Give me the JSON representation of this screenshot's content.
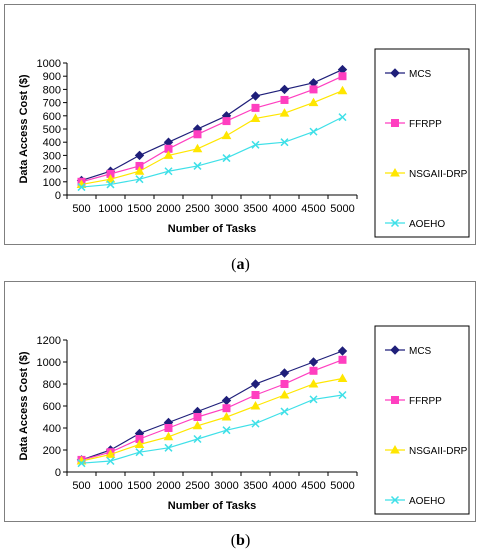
{
  "chart_data": [
    {
      "type": "line",
      "caption_label": "a",
      "xlabel": "Number of Tasks",
      "ylabel": "Data Access Cost ($)",
      "x": [
        500,
        1000,
        1500,
        2000,
        2500,
        3000,
        3500,
        4000,
        4500,
        5000
      ],
      "ylim": [
        0,
        1000
      ],
      "ytick_step": 100,
      "grid": false,
      "legend_position": "right",
      "series": [
        {
          "name": "MCS",
          "color": "#1f1f7a",
          "marker": "diamond",
          "values": [
            110,
            180,
            300,
            400,
            500,
            600,
            750,
            800,
            850,
            950
          ]
        },
        {
          "name": "FFRPP",
          "color": "#ff3fc0",
          "marker": "square",
          "values": [
            100,
            160,
            220,
            350,
            460,
            560,
            660,
            720,
            800,
            900
          ]
        },
        {
          "name": "NSGAII-DRP",
          "color": "#ffe600",
          "marker": "triangle",
          "values": [
            80,
            120,
            180,
            300,
            350,
            450,
            580,
            620,
            700,
            790
          ]
        },
        {
          "name": "AOEHO",
          "color": "#3fe0e8",
          "marker": "x",
          "values": [
            60,
            80,
            120,
            180,
            220,
            280,
            380,
            400,
            480,
            590
          ]
        }
      ]
    },
    {
      "type": "line",
      "caption_label": "b",
      "xlabel": "Number of Tasks",
      "ylabel": "Data Access Cost ($)",
      "x": [
        500,
        1000,
        1500,
        2000,
        2500,
        3000,
        3500,
        4000,
        4500,
        5000
      ],
      "ylim": [
        0,
        1200
      ],
      "ytick_step": 200,
      "grid": false,
      "legend_position": "right",
      "series": [
        {
          "name": "MCS",
          "color": "#1f1f7a",
          "marker": "diamond",
          "values": [
            110,
            200,
            350,
            450,
            550,
            650,
            800,
            900,
            1000,
            1100
          ]
        },
        {
          "name": "FFRPP",
          "color": "#ff3fc0",
          "marker": "square",
          "values": [
            110,
            180,
            300,
            400,
            500,
            580,
            700,
            800,
            920,
            1020
          ]
        },
        {
          "name": "NSGAII-DRP",
          "color": "#ffe600",
          "marker": "triangle",
          "values": [
            100,
            160,
            250,
            320,
            420,
            500,
            600,
            700,
            800,
            850
          ]
        },
        {
          "name": "AOEHO",
          "color": "#3fe0e8",
          "marker": "x",
          "values": [
            80,
            100,
            180,
            220,
            300,
            380,
            440,
            550,
            660,
            700
          ]
        }
      ]
    }
  ]
}
